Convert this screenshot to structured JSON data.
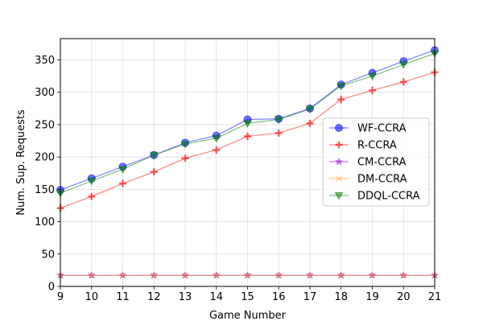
{
  "chart_data": {
    "type": "line",
    "title": "",
    "xlabel": "Game Number",
    "ylabel": "Num. Sup. Requests",
    "x": [
      9,
      10,
      11,
      12,
      13,
      14,
      15,
      16,
      17,
      18,
      19,
      20,
      21
    ],
    "xlim": [
      9,
      21
    ],
    "ylim": [
      0,
      383
    ],
    "xticks": [
      9,
      10,
      11,
      12,
      13,
      14,
      15,
      16,
      17,
      18,
      19,
      20,
      21
    ],
    "yticks": [
      0,
      50,
      100,
      150,
      200,
      250,
      300,
      350
    ],
    "grid": true,
    "legend_position": "center-right",
    "series": [
      {
        "name": "WF-CCRA",
        "color": "#0000ff",
        "marker": "circle",
        "values": [
          149,
          167,
          185,
          203,
          222,
          233,
          258,
          259,
          275,
          312,
          330,
          348,
          365
        ]
      },
      {
        "name": "R-CCRA",
        "color": "#ff0000",
        "marker": "plus",
        "values": [
          121,
          139,
          159,
          177,
          198,
          211,
          232,
          237,
          252,
          289,
          303,
          316,
          331
        ]
      },
      {
        "name": "CM-CCRA",
        "color": "#9400d3",
        "marker": "star",
        "values": [
          17,
          17,
          17,
          17,
          17,
          17,
          17,
          17,
          17,
          17,
          17,
          17,
          17
        ]
      },
      {
        "name": "DM-CCRA",
        "color": "#ff8c00",
        "marker": "x",
        "values": [
          17,
          17,
          17,
          17,
          17,
          17,
          17,
          17,
          17,
          17,
          17,
          17,
          17
        ]
      },
      {
        "name": "DDQL-CCRA",
        "color": "#008000",
        "marker": "triangle-down",
        "values": [
          144,
          163,
          181,
          203,
          220,
          229,
          252,
          258,
          274,
          310,
          325,
          343,
          360
        ]
      }
    ]
  }
}
